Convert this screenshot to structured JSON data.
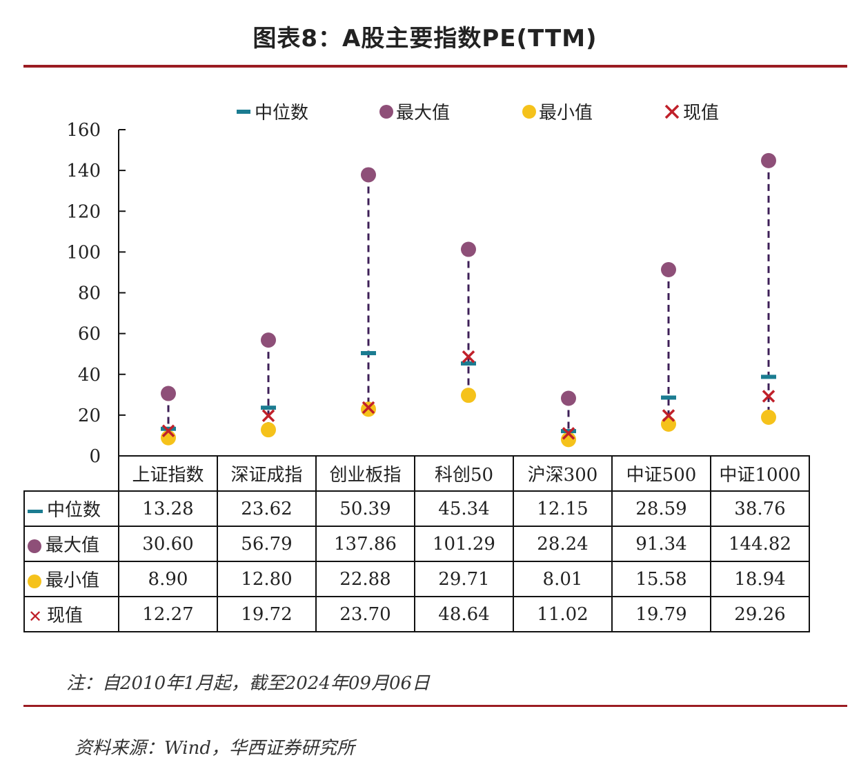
{
  "title": "图表8：A股主要指数PE(TTM)",
  "note": "注：自2010年1月起，截至2024年09月06日",
  "source": "资料来源：Wind，华西证券研究所",
  "colors": {
    "median": "#1b7c91",
    "max": "#8e4f78",
    "min": "#f5c21b",
    "current": "#c0202a",
    "rule": "#9b1c22",
    "connector": "#3d1f57"
  },
  "chart_data": {
    "type": "scatter",
    "title": "图表8：A股主要指数PE(TTM)",
    "categories": [
      "上证指数",
      "深证成指",
      "创业板指",
      "科创50",
      "沪深300",
      "中证500",
      "中证1000"
    ],
    "ylim": [
      0,
      160
    ],
    "yticks": [
      0,
      20,
      40,
      60,
      80,
      100,
      120,
      140,
      160
    ],
    "grid": false,
    "legend_position": "top",
    "series": [
      {
        "name": "中位数",
        "marker": "dash",
        "values": [
          13.28,
          23.62,
          50.39,
          45.34,
          12.15,
          28.59,
          38.76
        ]
      },
      {
        "name": "最大值",
        "marker": "circle",
        "values": [
          30.6,
          56.79,
          137.86,
          101.29,
          28.24,
          91.34,
          144.82
        ]
      },
      {
        "name": "最小值",
        "marker": "circle",
        "values": [
          8.9,
          12.8,
          22.88,
          29.71,
          8.01,
          15.58,
          18.94
        ]
      },
      {
        "name": "现值",
        "marker": "x",
        "values": [
          12.27,
          19.72,
          23.7,
          48.64,
          11.02,
          19.79,
          29.26
        ]
      }
    ]
  }
}
